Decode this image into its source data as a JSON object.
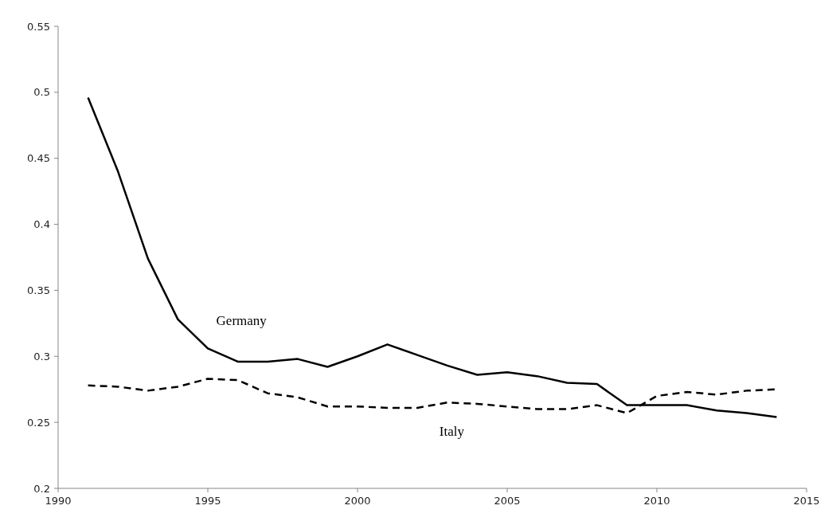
{
  "chart_data": {
    "type": "line",
    "x": [
      1991,
      1992,
      1993,
      1994,
      1995,
      1996,
      1997,
      1998,
      1999,
      2000,
      2001,
      2002,
      2003,
      2004,
      2005,
      2006,
      2007,
      2008,
      2009,
      2010,
      2011,
      2012,
      2013,
      2014
    ],
    "series": [
      {
        "name": "Germany",
        "color": "#000000",
        "line_style": "solid",
        "values": [
          0.496,
          0.44,
          0.374,
          0.328,
          0.306,
          0.296,
          0.296,
          0.298,
          0.292,
          0.3,
          0.309,
          0.301,
          0.293,
          0.286,
          0.288,
          0.285,
          0.28,
          0.279,
          0.263,
          0.263,
          0.263,
          0.259,
          0.257,
          0.254
        ]
      },
      {
        "name": "Italy",
        "color": "#000000",
        "line_style": "dashed",
        "values": [
          0.278,
          0.277,
          0.274,
          0.277,
          0.283,
          0.282,
          0.272,
          0.269,
          0.262,
          0.262,
          0.261,
          0.261,
          0.265,
          0.264,
          0.262,
          0.26,
          0.26,
          0.263,
          0.257,
          0.27,
          0.273,
          0.271,
          0.274,
          0.275
        ]
      }
    ],
    "xlim": [
      1990,
      2015
    ],
    "xticks": [
      1990,
      1995,
      2000,
      2005,
      2010,
      2015
    ],
    "ylim": [
      0.2,
      0.55
    ],
    "yticks": [
      0.2,
      0.25,
      0.3,
      0.35,
      0.4,
      0.45,
      0.5,
      0.55
    ],
    "grid": false
  }
}
